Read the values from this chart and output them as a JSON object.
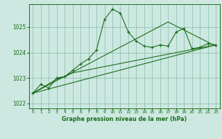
{
  "bg_color": "#cce8e0",
  "line_color": "#1a6b1a",
  "grid_color": "#88bbaa",
  "xlabel": "Graphe pression niveau de la mer (hPa)",
  "ylim": [
    1021.8,
    1025.9
  ],
  "xlim": [
    -0.5,
    23.5
  ],
  "yticks": [
    1022,
    1023,
    1024,
    1025
  ],
  "xticks": [
    0,
    1,
    2,
    3,
    4,
    5,
    6,
    7,
    8,
    9,
    10,
    11,
    12,
    13,
    14,
    15,
    16,
    17,
    18,
    19,
    20,
    21,
    22,
    23
  ],
  "series1_x": [
    0,
    1,
    2,
    3,
    4,
    5,
    6,
    7,
    8,
    9,
    10,
    11,
    12,
    13,
    14,
    15,
    16,
    17,
    18,
    19,
    20,
    21,
    22,
    23
  ],
  "series1_y": [
    1022.4,
    1022.75,
    1022.6,
    1023.0,
    1023.05,
    1023.3,
    1023.55,
    1023.75,
    1024.1,
    1025.3,
    1025.7,
    1025.55,
    1024.8,
    1024.45,
    1024.25,
    1024.2,
    1024.3,
    1024.25,
    1024.8,
    1024.95,
    1024.15,
    1024.2,
    1024.35,
    1024.3
  ],
  "series2_x": [
    0,
    23
  ],
  "series2_y": [
    1022.4,
    1024.3
  ],
  "series3_x": [
    0,
    17,
    23
  ],
  "series3_y": [
    1022.4,
    1025.2,
    1024.25
  ],
  "series4_x": [
    0,
    3,
    4,
    5,
    23
  ],
  "series4_y": [
    1022.4,
    1022.95,
    1023.05,
    1023.2,
    1024.3
  ]
}
